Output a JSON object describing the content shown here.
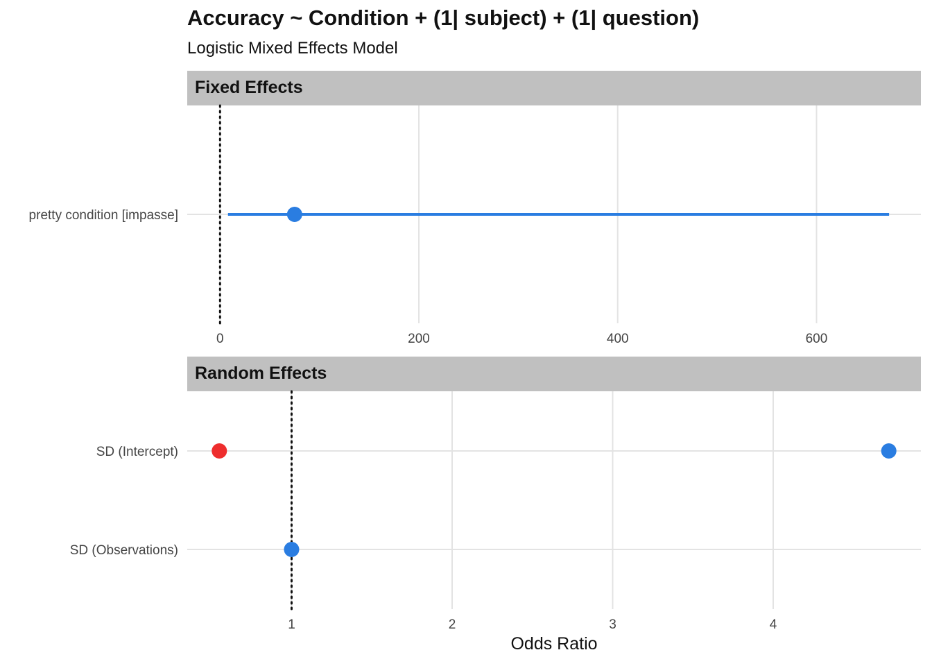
{
  "title": "Accuracy ~ Condition + (1| subject) + (1| question)",
  "subtitle": "Logistic Mixed Effects Model",
  "chart_data": [
    {
      "type": "forest",
      "facet": "Fixed Effects",
      "xlabel": "",
      "xlim": [
        -33,
        705
      ],
      "xticks": [
        0,
        200,
        400,
        600
      ],
      "reference_line": 0,
      "grid": true,
      "terms": [
        {
          "label": "pretty condition [impasse]",
          "estimate": 75,
          "ci_low": 8,
          "ci_high": 673,
          "color": "#2a7de1"
        }
      ]
    },
    {
      "type": "forest",
      "facet": "Random Effects",
      "xlabel": "Odds Ratio",
      "xlim": [
        0.35,
        4.92
      ],
      "xticks": [
        1,
        2,
        3,
        4
      ],
      "reference_line": 1,
      "grid": true,
      "terms": [
        {
          "label": "SD (Intercept)",
          "estimate": 0.55,
          "color": "#ee2d2d"
        },
        {
          "label": "SD (Intercept)",
          "estimate": 4.72,
          "color": "#2a7de1"
        },
        {
          "label": "SD (Observations)",
          "estimate": 1.0,
          "color": "#2a7de1"
        }
      ]
    }
  ]
}
